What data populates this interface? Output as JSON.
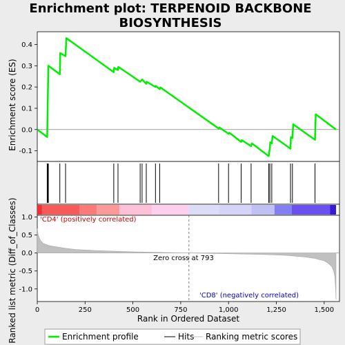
{
  "chart_data": {
    "type": "line",
    "title_line1": "Enrichment plot: TERPENOID BACKBONE",
    "title_line2": "BIOSYNTHESIS",
    "ylabel_top": "Enrichment score (ES)",
    "ylabel_bottom": "Ranked list metric (Diff_of_Classes)",
    "xlabel": "Rank in Ordered Dataset",
    "xlim": [
      0,
      1580
    ],
    "x_ticks": [
      0,
      250,
      500,
      750,
      1000,
      1250,
      1500
    ],
    "x_tick_labels": [
      "0",
      "250",
      "500",
      "750",
      "1,000",
      "1,250",
      "1,500"
    ],
    "es_ylim": [
      -0.15,
      0.46
    ],
    "es_ticks": [
      -0.1,
      0.0,
      0.1,
      0.2,
      0.3,
      0.4
    ],
    "es_tick_labels": [
      "-0.1",
      "0.0",
      "0.1",
      "0.2",
      "0.3",
      "0.4"
    ],
    "metric_ylim": [
      -1.35,
      1.05
    ],
    "metric_ticks": [
      -1.0,
      -0.5,
      0.0,
      0.5,
      1.0
    ],
    "metric_tick_labels": [
      "-1.0",
      "-0.5",
      "0.0",
      "0.5",
      "1.0"
    ],
    "es_curve": {
      "x": [
        0,
        52,
        55,
        58,
        118,
        120,
        148,
        152,
        400,
        402,
        422,
        424,
        538,
        548,
        570,
        572,
        618,
        620,
        640,
        644,
        948,
        952,
        1000,
        1004,
        1066,
        1070,
        1118,
        1122,
        1210,
        1212,
        1216,
        1218,
        1226,
        1230,
        1324,
        1326,
        1334,
        1338,
        1452,
        1456,
        1562
      ],
      "y": [
        0.0,
        -0.035,
        0.135,
        0.3,
        0.26,
        0.36,
        0.345,
        0.43,
        0.27,
        0.29,
        0.28,
        0.295,
        0.225,
        0.235,
        0.215,
        0.225,
        0.2,
        0.205,
        0.19,
        0.198,
        0.005,
        0.01,
        -0.02,
        -0.015,
        -0.058,
        -0.05,
        -0.078,
        -0.065,
        -0.125,
        -0.11,
        -0.09,
        -0.06,
        -0.065,
        -0.03,
        -0.09,
        -0.035,
        -0.04,
        0.025,
        -0.048,
        0.072,
        0.0
      ]
    },
    "hits": [
      52,
      55,
      58,
      118,
      148,
      400,
      422,
      538,
      548,
      570,
      618,
      640,
      948,
      1000,
      1066,
      1118,
      1210,
      1216,
      1226,
      1324,
      1334,
      1452
    ],
    "metric_curve": {
      "x": [
        0,
        5,
        15,
        30,
        60,
        100,
        150,
        200,
        250,
        300,
        400,
        500,
        600,
        700,
        793,
        900,
        1000,
        1100,
        1200,
        1300,
        1400,
        1450,
        1500,
        1520,
        1540,
        1550,
        1555,
        1560,
        1562
      ],
      "y": [
        0.68,
        0.5,
        0.36,
        0.27,
        0.21,
        0.17,
        0.13,
        0.1,
        0.085,
        0.07,
        0.05,
        0.035,
        0.02,
        0.01,
        0.0,
        -0.01,
        -0.02,
        -0.03,
        -0.045,
        -0.065,
        -0.11,
        -0.15,
        -0.22,
        -0.28,
        -0.38,
        -0.5,
        -0.65,
        -1.0,
        -1.3
      ]
    },
    "zero_cross": 793,
    "zero_cross_label": "Zero cross at 793",
    "pos_label": "'CD4' (positively correlated)",
    "neg_label": "'CD8' (negatively correlated)",
    "heat_segments": [
      {
        "from": 0,
        "to": 25,
        "color": "#f03030"
      },
      {
        "from": 25,
        "to": 220,
        "color": "#f85a5a"
      },
      {
        "from": 220,
        "to": 310,
        "color": "#fa7a7a"
      },
      {
        "from": 310,
        "to": 430,
        "color": "#fc9898"
      },
      {
        "from": 430,
        "to": 600,
        "color": "#fdc0d8"
      },
      {
        "from": 600,
        "to": 793,
        "color": "#fcd0ec"
      },
      {
        "from": 793,
        "to": 950,
        "color": "#dcdcf8"
      },
      {
        "from": 950,
        "to": 1120,
        "color": "#d4d4f8"
      },
      {
        "from": 1120,
        "to": 1240,
        "color": "#c0c0f4"
      },
      {
        "from": 1240,
        "to": 1330,
        "color": "#8080f0"
      },
      {
        "from": 1330,
        "to": 1530,
        "color": "#6a50ee"
      },
      {
        "from": 1530,
        "to": 1562,
        "color": "#3a18d8"
      }
    ],
    "legend": [
      "Enrichment profile",
      "Hits",
      "Ranking metric scores"
    ],
    "colors": {
      "es_line": "#00ee00",
      "hit_line": "#000000",
      "metric_fill": "#c0c0c0",
      "pos_label": "#cc0000",
      "neg_label": "#0000cc"
    }
  }
}
